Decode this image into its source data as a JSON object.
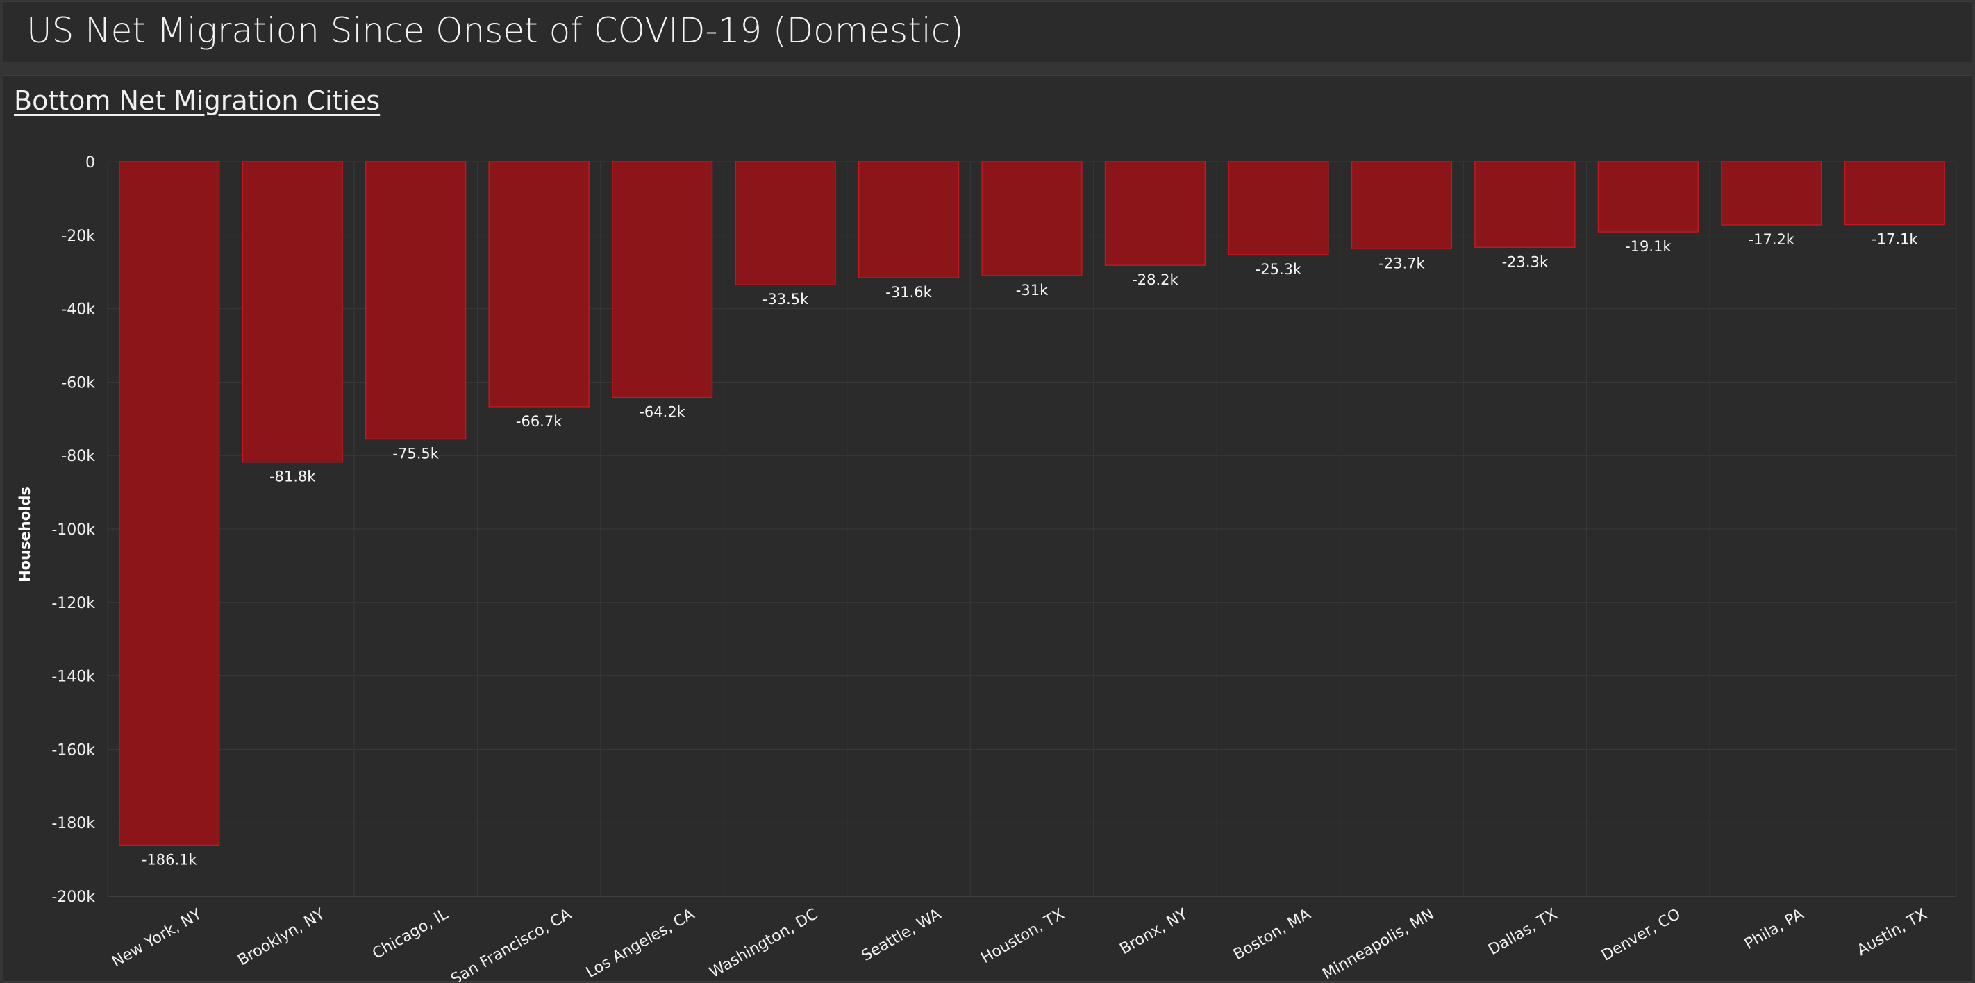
{
  "header": {
    "title": "US Net Migration Since Onset of COVID-19 (Domestic)"
  },
  "panel": {
    "title": "Bottom Net Migration Cities"
  },
  "colors": {
    "bar_fill": "#8b1519",
    "bar_stroke": "#c0191f",
    "background": "#2b2b2b",
    "grid": "#3a3a3a"
  },
  "chart_data": {
    "type": "bar",
    "title": "Bottom Net Migration Cities",
    "xlabel": "",
    "ylabel": "Households",
    "ylim": [
      -200000,
      0
    ],
    "yticks": [
      0,
      -20000,
      -40000,
      -60000,
      -80000,
      -100000,
      -120000,
      -140000,
      -160000,
      -180000,
      -200000
    ],
    "ytick_labels": [
      "0",
      "-20k",
      "-40k",
      "-60k",
      "-80k",
      "-100k",
      "-120k",
      "-140k",
      "-160k",
      "-180k",
      "-200k"
    ],
    "grid": true,
    "categories": [
      "New York, NY",
      "Brooklyn, NY",
      "Chicago, IL",
      "San Francisco, CA",
      "Los Angeles, CA",
      "Washington, DC",
      "Seattle, WA",
      "Houston, TX",
      "Bronx, NY",
      "Boston, MA",
      "Minneapolis, MN",
      "Dallas, TX",
      "Denver, CO",
      "Phila, PA",
      "Austin, TX"
    ],
    "values": [
      -186100,
      -81800,
      -75500,
      -66700,
      -64200,
      -33500,
      -31600,
      -31000,
      -28200,
      -25300,
      -23700,
      -23300,
      -19100,
      -17200,
      -17100
    ],
    "value_labels": [
      "-186.1k",
      "-81.8k",
      "-75.5k",
      "-66.7k",
      "-64.2k",
      "-33.5k",
      "-31.6k",
      "-31k",
      "-28.2k",
      "-25.3k",
      "-23.7k",
      "-23.3k",
      "-19.1k",
      "-17.2k",
      "-17.1k"
    ]
  }
}
